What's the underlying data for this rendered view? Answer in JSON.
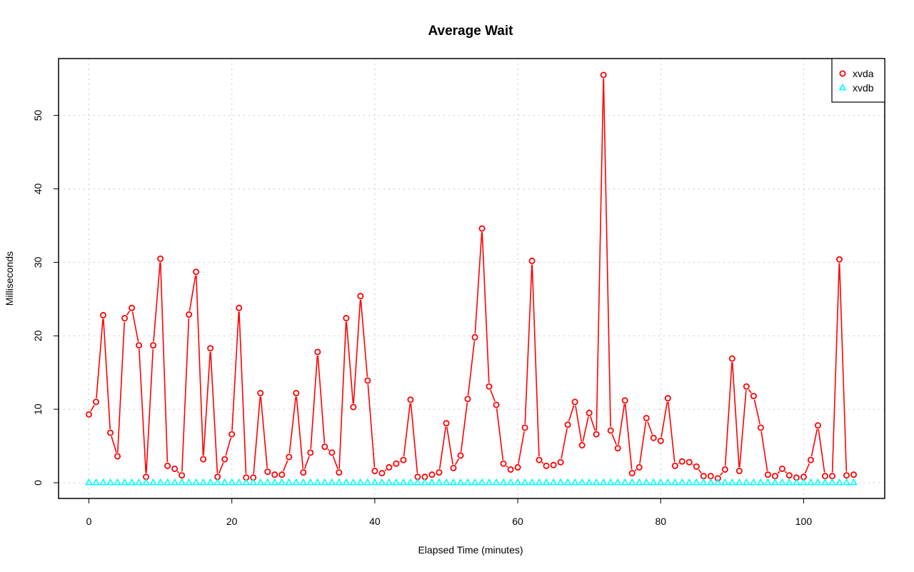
{
  "chart_data": {
    "type": "line",
    "title": "Average Wait",
    "xlabel": "Elapsed Time (minutes)",
    "ylabel": "Milliseconds",
    "xlim": [
      0,
      107
    ],
    "ylim": [
      0,
      55.5
    ],
    "x_ticks": [
      0,
      20,
      40,
      60,
      80,
      100
    ],
    "y_ticks": [
      0,
      10,
      20,
      30,
      40,
      50
    ],
    "grid": true,
    "legend_position": "top-right",
    "series": [
      {
        "name": "xvda",
        "color": "#ff0000",
        "marker": "circle",
        "values": [
          9.3,
          11.0,
          22.8,
          6.8,
          3.6,
          22.4,
          23.8,
          18.7,
          0.8,
          18.7,
          30.5,
          2.3,
          1.9,
          1.0,
          22.9,
          28.7,
          3.2,
          18.3,
          0.8,
          3.2,
          6.6,
          23.8,
          0.7,
          0.7,
          12.2,
          1.5,
          1.1,
          1.1,
          3.5,
          12.2,
          1.4,
          4.1,
          17.8,
          4.9,
          4.1,
          1.4,
          22.4,
          10.3,
          25.4,
          13.9,
          1.6,
          1.3,
          2.1,
          2.6,
          3.1,
          11.3,
          0.8,
          0.8,
          1.1,
          1.4,
          8.1,
          2.0,
          3.7,
          11.4,
          19.8,
          34.6,
          13.1,
          10.6,
          2.6,
          1.8,
          2.1,
          7.5,
          30.2,
          3.1,
          2.3,
          2.4,
          2.8,
          7.9,
          11.0,
          5.1,
          9.5,
          6.6,
          55.5,
          7.1,
          4.7,
          11.2,
          1.3,
          2.1,
          8.8,
          6.1,
          5.7,
          11.5,
          2.3,
          2.9,
          2.8,
          2.2,
          0.9,
          0.9,
          0.6,
          1.8,
          16.9,
          1.6,
          13.1,
          11.8,
          7.5,
          1.1,
          0.9,
          1.9,
          1.0,
          0.7,
          0.8,
          3.1,
          7.8,
          0.9,
          0.9,
          30.4,
          1.0,
          1.1
        ]
      },
      {
        "name": "xvdb",
        "color": "#00ffff",
        "marker": "triangle",
        "values": [
          0,
          0,
          0,
          0,
          0,
          0,
          0,
          0,
          0,
          0,
          0,
          0,
          0,
          0,
          0,
          0,
          0,
          0,
          0,
          0,
          0,
          0,
          0,
          0,
          0,
          0,
          0,
          0,
          0,
          0,
          0,
          0,
          0,
          0,
          0,
          0,
          0,
          0,
          0,
          0,
          0,
          0,
          0,
          0,
          0,
          0,
          0,
          0,
          0,
          0,
          0,
          0,
          0,
          0,
          0,
          0,
          0,
          0,
          0,
          0,
          0,
          0,
          0,
          0,
          0,
          0,
          0,
          0,
          0,
          0,
          0,
          0,
          0,
          0,
          0,
          0,
          0,
          0,
          0,
          0,
          0,
          0,
          0,
          0,
          0,
          0,
          0,
          0,
          0,
          0,
          0,
          0,
          0,
          0,
          0,
          0,
          0,
          0,
          0,
          0,
          0,
          0,
          0,
          0,
          0,
          0,
          0,
          0
        ]
      }
    ]
  }
}
